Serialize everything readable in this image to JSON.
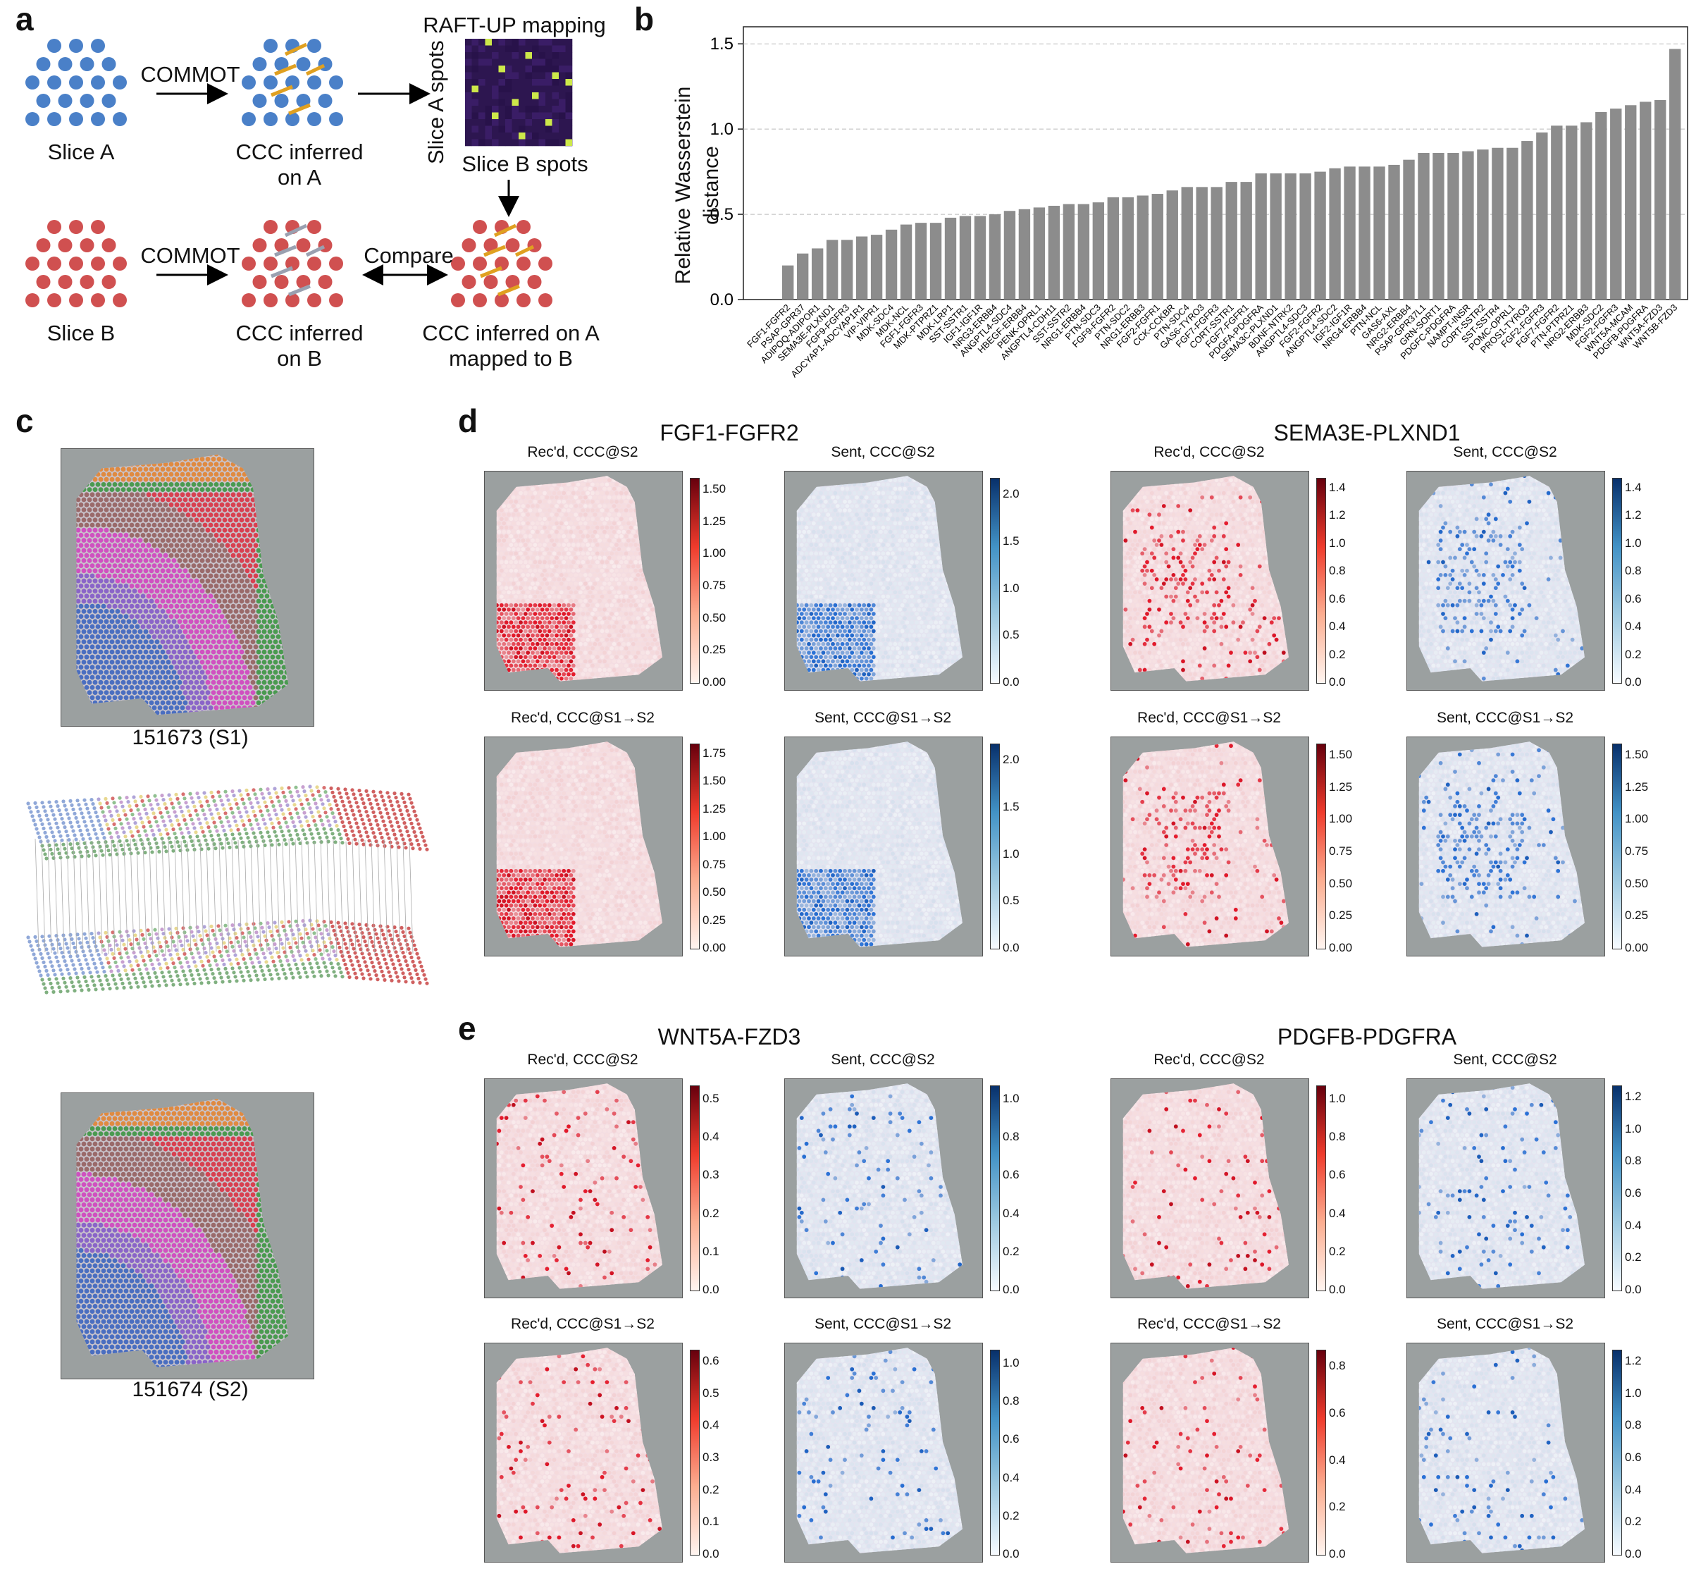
{
  "panels": {
    "a": "a",
    "b": "b",
    "c": "c",
    "d": "d",
    "e": "e"
  },
  "panel_a": {
    "slice_a": "Slice A",
    "slice_b": "Slice B",
    "commot_top": "COMMOT",
    "commot_bottom": "COMMOT",
    "ccc_a_line1": "CCC inferred",
    "ccc_a_line2": "on A",
    "ccc_b_line1": "CCC inferred",
    "ccc_b_line2": "on B",
    "raft_title": "RAFT-UP mapping",
    "raft_ylabel": "Slice A spots",
    "raft_xlabel": "Slice B spots",
    "compare": "Compare",
    "mapped_line1": "CCC inferred on A",
    "mapped_line2": "mapped to B",
    "colors": {
      "blue": "#4a80c8",
      "red": "#d05050",
      "arrow": "#e0a020",
      "gray_arrow": "#9aa0b0"
    }
  },
  "chart_data": {
    "type": "bar",
    "ylabel_line1": "Relative Wasserstein",
    "ylabel_line2": "distance",
    "ylim": [
      0,
      1.6
    ],
    "yticks": [
      "0.0",
      "0.5",
      "1.0",
      "1.5"
    ],
    "grid": "horizontal dashed",
    "bar_color": "#8c8c8c",
    "categories": [
      "FGF1-FGFR2",
      "PSAP-GPR37",
      "ADIPOQ-ADIPOR1",
      "SEMA3E-PLXND1",
      "FGF9-FGFR3",
      "ADCYAP1-ADCYAP1R1",
      "VIP-VIPR1",
      "MDK-SDC4",
      "MDK-NCL",
      "FGF1-FGFR3",
      "MDK-PTPRZ1",
      "MDK-LRP1",
      "SST-SSTR1",
      "IGF1-IGF1R",
      "NRG3-ERBB4",
      "ANGPTL4-SDC4",
      "HBEGF-ERBB4",
      "PENK-OPRL1",
      "ANGPTL4-CDH11",
      "SST-SSTR2",
      "NRG1-ERBB4",
      "PTN-SDC3",
      "FGF9-FGFR2",
      "PTN-SDC2",
      "NRG1-ERBB3",
      "FGF2-FGFR1",
      "CCK-CCKBR",
      "PTN-SDC4",
      "GAS6-TYRO3",
      "FGF7-FGFR3",
      "CORT-SSTR1",
      "FGF7-FGFR1",
      "PDGFA-PDGFRA",
      "SEMA3C-PLXND1",
      "BDNF-NTRK2",
      "ANGPTL4-SDC3",
      "FGF2-FGFR2",
      "ANGPTL4-SDC2",
      "IGF2-IGF1R",
      "NRG4-ERBB4",
      "PTN-NCL",
      "GAS6-AXL",
      "NRG2-ERBB4",
      "PSAP-GPR37L1",
      "GRN-SORT1",
      "PDGFC-PDGFRA",
      "NAMPT-INSR",
      "CORT-SSTR2",
      "SST-SSTR4",
      "POMC-OPRL1",
      "PROS1-TYRO3",
      "FGF2-FGFR3",
      "FGF7-FGFR2",
      "PTN-PTPRZ1",
      "NRG2-ERBB3",
      "MDK-SDC2",
      "FGF2-FGFR3",
      "WNT5A-MCAM",
      "PDGFB-PDGFRA",
      "WNT5A-FZD3",
      "WNT5B-FZD3"
    ],
    "values": [
      0.2,
      0.27,
      0.3,
      0.35,
      0.35,
      0.37,
      0.38,
      0.41,
      0.44,
      0.45,
      0.45,
      0.48,
      0.49,
      0.49,
      0.5,
      0.52,
      0.53,
      0.54,
      0.55,
      0.56,
      0.56,
      0.57,
      0.6,
      0.6,
      0.61,
      0.62,
      0.64,
      0.66,
      0.66,
      0.66,
      0.69,
      0.69,
      0.74,
      0.74,
      0.74,
      0.74,
      0.75,
      0.77,
      0.78,
      0.78,
      0.78,
      0.79,
      0.82,
      0.86,
      0.86,
      0.86,
      0.87,
      0.88,
      0.89,
      0.89,
      0.93,
      0.98,
      1.02,
      1.02,
      1.04,
      1.1,
      1.12,
      1.14,
      1.16,
      1.17,
      1.47
    ]
  },
  "panel_c": {
    "top_label": "151673 (S1)",
    "bottom_label": "151674 (S2)"
  },
  "titles": {
    "d_left": "FGF1-FGFR2",
    "d_right": "SEMA3E-PLXND1",
    "e_left": "WNT5A-FZD3",
    "e_right": "PDGFB-PDGFRA"
  },
  "subplots": [
    {
      "title": "Rec'd, CCC@S2",
      "scheme": "red",
      "ticks": [
        "1.50",
        "1.25",
        "1.00",
        "0.75",
        "0.50",
        "0.25",
        "0.00"
      ]
    },
    {
      "title": "Sent, CCC@S2",
      "scheme": "blue",
      "ticks": [
        "2.0",
        "1.5",
        "1.0",
        "0.5",
        "0.0"
      ]
    },
    {
      "title": "Rec'd, CCC@S2",
      "scheme": "red",
      "ticks": [
        "1.4",
        "1.2",
        "1.0",
        "0.8",
        "0.6",
        "0.4",
        "0.2",
        "0.0"
      ]
    },
    {
      "title": "Sent, CCC@S2",
      "scheme": "blue",
      "ticks": [
        "1.4",
        "1.2",
        "1.0",
        "0.8",
        "0.6",
        "0.4",
        "0.2",
        "0.0"
      ]
    },
    {
      "title": "Rec'd, CCC@S1→S2",
      "scheme": "red",
      "ticks": [
        "1.75",
        "1.50",
        "1.25",
        "1.00",
        "0.75",
        "0.50",
        "0.25",
        "0.00"
      ]
    },
    {
      "title": "Sent, CCC@S1→S2",
      "scheme": "blue",
      "ticks": [
        "2.0",
        "1.5",
        "1.0",
        "0.5",
        "0.0"
      ]
    },
    {
      "title": "Rec'd, CCC@S1→S2",
      "scheme": "red",
      "ticks": [
        "1.50",
        "1.25",
        "1.00",
        "0.75",
        "0.50",
        "0.25",
        "0.00"
      ]
    },
    {
      "title": "Sent, CCC@S1→S2",
      "scheme": "blue",
      "ticks": [
        "1.50",
        "1.25",
        "1.00",
        "0.75",
        "0.50",
        "0.25",
        "0.00"
      ]
    },
    {
      "title": "Rec'd, CCC@S2",
      "scheme": "red",
      "ticks": [
        "0.5",
        "0.4",
        "0.3",
        "0.2",
        "0.1",
        "0.0"
      ]
    },
    {
      "title": "Sent, CCC@S2",
      "scheme": "blue",
      "ticks": [
        "1.0",
        "0.8",
        "0.6",
        "0.4",
        "0.2",
        "0.0"
      ]
    },
    {
      "title": "Rec'd, CCC@S2",
      "scheme": "red",
      "ticks": [
        "1.0",
        "0.8",
        "0.6",
        "0.4",
        "0.2",
        "0.0"
      ]
    },
    {
      "title": "Sent, CCC@S2",
      "scheme": "blue",
      "ticks": [
        "1.2",
        "1.0",
        "0.8",
        "0.6",
        "0.4",
        "0.2",
        "0.0"
      ]
    },
    {
      "title": "Rec'd, CCC@S1→S2",
      "scheme": "red",
      "ticks": [
        "0.6",
        "0.5",
        "0.4",
        "0.3",
        "0.2",
        "0.1",
        "0.0"
      ]
    },
    {
      "title": "Sent, CCC@S1→S2",
      "scheme": "blue",
      "ticks": [
        "1.0",
        "0.8",
        "0.6",
        "0.4",
        "0.2",
        "0.0"
      ]
    },
    {
      "title": "Rec'd, CCC@S1→S2",
      "scheme": "red",
      "ticks": [
        "0.8",
        "0.6",
        "0.4",
        "0.2",
        "0.0"
      ]
    },
    {
      "title": "Sent, CCC@S1→S2",
      "scheme": "blue",
      "ticks": [
        "1.2",
        "1.0",
        "0.8",
        "0.6",
        "0.4",
        "0.2",
        "0.0"
      ]
    }
  ]
}
